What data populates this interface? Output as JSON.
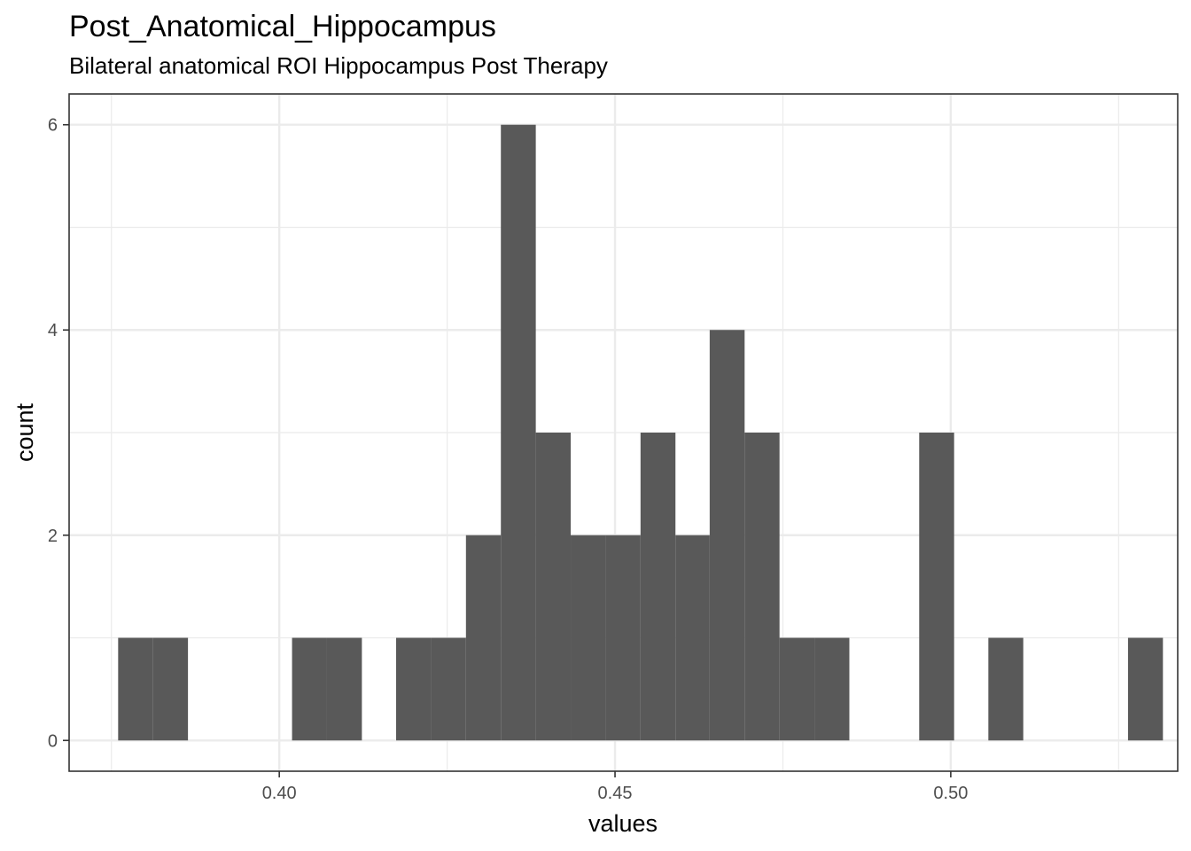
{
  "chart_data": {
    "type": "bar",
    "title": "Post_Anatomical_Hippocampus",
    "subtitle": "Bilateral anatomical ROI Hippocampus Post Therapy",
    "xlabel": "values",
    "ylabel": "count",
    "xlim": [
      0.3687,
      0.5338
    ],
    "ylim": [
      -0.3,
      6.3
    ],
    "x_ticks": [
      0.4,
      0.45,
      0.5
    ],
    "x_tick_labels": [
      "0.40",
      "0.45",
      "0.50"
    ],
    "y_ticks": [
      0,
      2,
      4,
      6
    ],
    "y_tick_labels": [
      "0",
      "2",
      "4",
      "6"
    ],
    "grid": true,
    "bar_color": "#595959",
    "bins": [
      {
        "x0": 0.376,
        "x1": 0.3812,
        "count": 1
      },
      {
        "x0": 0.3812,
        "x1": 0.3864,
        "count": 1
      },
      {
        "x0": 0.4019,
        "x1": 0.4071,
        "count": 1
      },
      {
        "x0": 0.4071,
        "x1": 0.4123,
        "count": 1
      },
      {
        "x0": 0.4174,
        "x1": 0.4226,
        "count": 1
      },
      {
        "x0": 0.4226,
        "x1": 0.4278,
        "count": 1
      },
      {
        "x0": 0.4278,
        "x1": 0.433,
        "count": 2
      },
      {
        "x0": 0.433,
        "x1": 0.4382,
        "count": 6
      },
      {
        "x0": 0.4382,
        "x1": 0.4434,
        "count": 3
      },
      {
        "x0": 0.4434,
        "x1": 0.4486,
        "count": 2
      },
      {
        "x0": 0.4486,
        "x1": 0.4538,
        "count": 2
      },
      {
        "x0": 0.4538,
        "x1": 0.459,
        "count": 3
      },
      {
        "x0": 0.459,
        "x1": 0.4641,
        "count": 2
      },
      {
        "x0": 0.4641,
        "x1": 0.4693,
        "count": 4
      },
      {
        "x0": 0.4693,
        "x1": 0.4745,
        "count": 3
      },
      {
        "x0": 0.4745,
        "x1": 0.4797,
        "count": 1
      },
      {
        "x0": 0.4797,
        "x1": 0.4849,
        "count": 1
      },
      {
        "x0": 0.4953,
        "x1": 0.5005,
        "count": 3
      },
      {
        "x0": 0.5056,
        "x1": 0.5108,
        "count": 1
      },
      {
        "x0": 0.5264,
        "x1": 0.5316,
        "count": 1
      }
    ]
  }
}
